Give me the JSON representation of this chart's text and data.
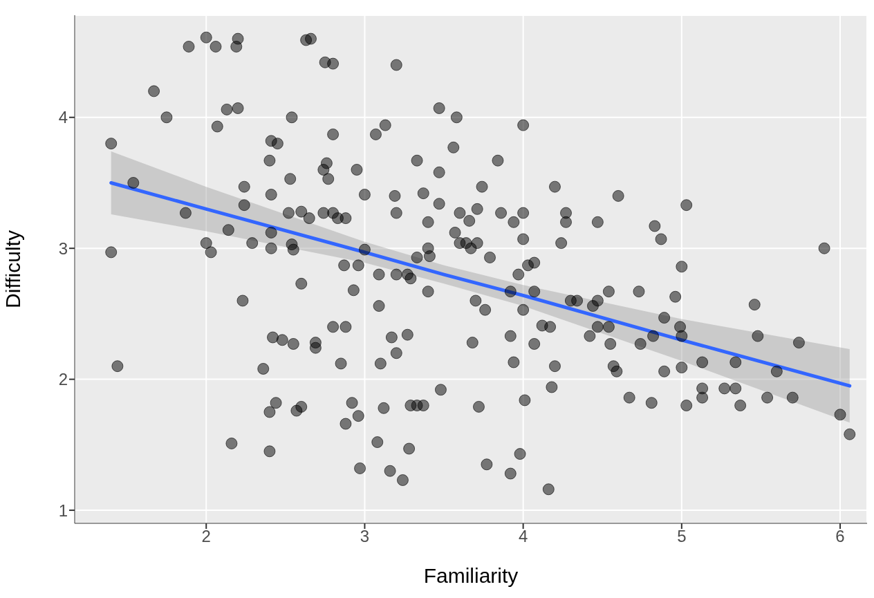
{
  "chart_data": {
    "type": "scatter",
    "xlabel": "Familiarity",
    "ylabel": "Difficulty",
    "xlim": [
      1.17,
      6.17
    ],
    "ylim": [
      0.9,
      4.78
    ],
    "xticks": [
      2,
      3,
      4,
      5,
      6
    ],
    "yticks": [
      1,
      2,
      3,
      4
    ],
    "grid": true,
    "series": [
      {
        "marker": "circle",
        "color": "#000000",
        "x": [
          1.4,
          1.4,
          1.44,
          1.54,
          1.67,
          1.75,
          1.89,
          1.87,
          2.0,
          2.0,
          2.03,
          2.06,
          2.07,
          2.14,
          2.13,
          2.16,
          2.19,
          2.2,
          2.2,
          2.24,
          2.24,
          2.23,
          2.29,
          2.36,
          2.4,
          2.41,
          2.45,
          2.41,
          2.41,
          2.41,
          2.42,
          2.4,
          2.4,
          2.44,
          2.48,
          2.52,
          2.53,
          2.54,
          2.54,
          2.55,
          2.55,
          2.57,
          2.6,
          2.6,
          2.6,
          2.63,
          2.66,
          2.65,
          2.69,
          2.69,
          2.74,
          2.74,
          2.75,
          2.76,
          2.77,
          2.8,
          2.8,
          2.8,
          2.8,
          2.83,
          2.85,
          2.87,
          2.88,
          2.88,
          2.88,
          2.92,
          2.93,
          2.95,
          2.96,
          2.96,
          2.97,
          3.0,
          3.0,
          3.07,
          3.08,
          3.09,
          3.09,
          3.1,
          3.12,
          3.13,
          3.16,
          3.17,
          3.19,
          3.2,
          3.2,
          3.2,
          3.2,
          3.24,
          3.27,
          3.28,
          3.27,
          3.29,
          3.29,
          3.33,
          3.33,
          3.33,
          3.37,
          3.37,
          3.4,
          3.4,
          3.4,
          3.41,
          3.47,
          3.47,
          3.47,
          3.48,
          3.56,
          3.58,
          3.57,
          3.6,
          3.6,
          3.64,
          3.66,
          3.67,
          3.68,
          3.7,
          3.71,
          3.71,
          3.72,
          3.74,
          3.76,
          3.77,
          3.79,
          3.84,
          3.86,
          3.92,
          3.92,
          3.92,
          3.94,
          3.94,
          3.97,
          3.98,
          4.0,
          4.0,
          4.0,
          4.0,
          4.01,
          4.03,
          4.07,
          4.07,
          4.07,
          4.12,
          4.17,
          4.16,
          4.18,
          4.2,
          4.2,
          4.24,
          4.27,
          4.27,
          4.3,
          4.34,
          4.42,
          4.44,
          4.47,
          4.47,
          4.47,
          4.54,
          4.54,
          4.55,
          4.57,
          4.59,
          4.6,
          4.67,
          4.73,
          4.74,
          4.81,
          4.82,
          4.83,
          4.87,
          4.89,
          4.89,
          4.96,
          4.99,
          5.0,
          5.0,
          5.0,
          5.03,
          5.03,
          5.13,
          5.13,
          5.13,
          5.27,
          5.34,
          5.34,
          5.37,
          5.46,
          5.48,
          5.54,
          5.6,
          5.7,
          5.74,
          5.9,
          6.0,
          6.06
        ],
        "values": [
          3.8,
          2.97,
          2.1,
          3.5,
          4.2,
          4.0,
          4.54,
          3.27,
          4.61,
          3.04,
          2.97,
          4.54,
          3.93,
          3.14,
          4.06,
          1.51,
          4.54,
          4.6,
          4.07,
          3.47,
          3.33,
          2.6,
          3.04,
          2.08,
          3.67,
          3.82,
          3.8,
          3.41,
          3.12,
          3.0,
          2.32,
          1.75,
          1.45,
          1.82,
          2.3,
          3.27,
          3.53,
          4.0,
          3.03,
          2.99,
          2.27,
          1.76,
          1.79,
          3.28,
          2.73,
          4.59,
          4.6,
          3.23,
          2.28,
          2.24,
          3.27,
          3.6,
          4.42,
          3.65,
          3.53,
          4.41,
          3.87,
          3.27,
          2.4,
          3.23,
          2.12,
          2.87,
          3.23,
          2.4,
          1.66,
          1.82,
          2.68,
          3.6,
          2.87,
          1.72,
          1.32,
          3.41,
          2.99,
          3.87,
          1.52,
          2.56,
          2.8,
          2.12,
          1.78,
          3.94,
          1.3,
          2.32,
          3.4,
          2.2,
          3.27,
          2.8,
          4.4,
          1.23,
          2.34,
          1.47,
          2.8,
          2.77,
          1.8,
          1.8,
          2.93,
          3.67,
          3.42,
          1.8,
          3.2,
          3.0,
          2.67,
          2.94,
          4.07,
          3.58,
          3.34,
          1.92,
          3.77,
          4.0,
          3.12,
          3.27,
          3.04,
          3.04,
          3.21,
          3.0,
          2.28,
          2.6,
          3.3,
          3.04,
          1.79,
          3.47,
          2.53,
          1.35,
          2.93,
          3.67,
          3.27,
          2.67,
          2.33,
          1.28,
          3.2,
          2.13,
          2.8,
          1.43,
          3.94,
          3.27,
          3.07,
          2.53,
          1.84,
          2.87,
          2.89,
          2.67,
          2.27,
          2.41,
          2.4,
          1.16,
          1.94,
          3.47,
          2.1,
          3.04,
          3.27,
          3.2,
          2.6,
          2.6,
          2.33,
          2.56,
          2.6,
          3.2,
          2.4,
          2.67,
          2.4,
          2.27,
          2.1,
          2.06,
          3.4,
          1.86,
          2.67,
          2.27,
          1.82,
          2.33,
          3.17,
          3.07,
          2.47,
          2.06,
          2.63,
          2.4,
          2.33,
          2.09,
          2.86,
          3.33,
          1.8,
          2.13,
          1.93,
          1.86,
          1.93,
          2.13,
          1.93,
          1.8,
          2.57,
          2.33,
          1.86,
          2.06,
          1.86,
          2.28,
          3.0,
          1.73,
          1.58
        ]
      },
      {
        "type": "line",
        "marker": "none",
        "color": "#3366ff",
        "x": [
          1.4,
          2,
          3,
          3.5,
          4,
          5,
          6.06
        ],
        "values": [
          3.5,
          3.3,
          2.97,
          2.8,
          2.64,
          2.3,
          1.95
        ],
        "lower": [
          3.26,
          3.13,
          2.89,
          2.73,
          2.56,
          2.14,
          1.67
        ],
        "upper": [
          3.74,
          3.47,
          3.05,
          2.87,
          2.72,
          2.46,
          2.23
        ]
      }
    ]
  }
}
